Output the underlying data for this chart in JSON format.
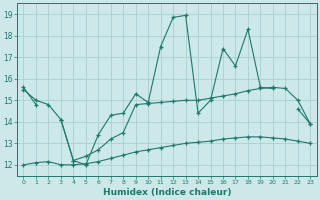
{
  "xlabel": "Humidex (Indice chaleur)",
  "x": [
    0,
    1,
    2,
    3,
    4,
    5,
    6,
    7,
    8,
    9,
    10,
    11,
    12,
    13,
    14,
    15,
    16,
    17,
    18,
    19,
    20,
    21,
    22,
    23
  ],
  "line1": [
    15.6,
    14.8,
    null,
    14.1,
    12.2,
    12.0,
    13.4,
    14.3,
    14.4,
    15.3,
    14.9,
    17.5,
    18.85,
    18.95,
    14.4,
    15.0,
    17.4,
    16.6,
    18.3,
    15.6,
    15.55,
    null,
    14.6,
    13.9
  ],
  "line2": [
    15.5,
    15.0,
    14.8,
    14.1,
    12.2,
    12.4,
    12.7,
    13.2,
    13.5,
    14.8,
    14.85,
    14.9,
    14.95,
    15.0,
    15.0,
    15.1,
    15.2,
    15.3,
    15.45,
    15.55,
    15.6,
    15.55,
    15.0,
    13.9
  ],
  "line3": [
    12.0,
    12.1,
    12.15,
    12.0,
    12.0,
    12.05,
    12.15,
    12.3,
    12.45,
    12.6,
    12.7,
    12.8,
    12.9,
    13.0,
    13.05,
    13.1,
    13.2,
    13.25,
    13.3,
    13.3,
    13.25,
    13.2,
    13.1,
    13.0
  ],
  "color": "#1a7a6e",
  "bg_color": "#cce8e8",
  "grid_color": "#aacece",
  "ylim": [
    11.5,
    19.5
  ],
  "yticks": [
    12,
    13,
    14,
    15,
    16,
    17,
    18,
    19
  ],
  "xticks": [
    0,
    1,
    2,
    3,
    4,
    5,
    6,
    7,
    8,
    9,
    10,
    11,
    12,
    13,
    14,
    15,
    16,
    17,
    18,
    19,
    20,
    21,
    22,
    23
  ]
}
